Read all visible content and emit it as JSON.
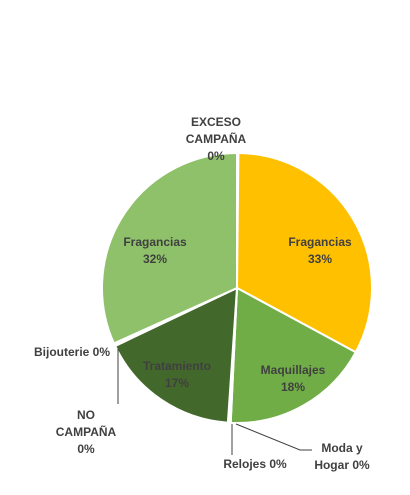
{
  "chart_data": {
    "type": "pie",
    "title": "",
    "slices": [
      {
        "label": "EXCESO CAMPAÑA",
        "value": 0,
        "pct_label": "0%",
        "color": "#FFC000",
        "label_lines": [
          "EXCESO",
          "CAMPAÑA",
          "0%"
        ]
      },
      {
        "label": "Fragancias",
        "value": 33,
        "pct_label": "33%",
        "color": "#FFC000",
        "label_lines": [
          "Fragancias",
          "33%"
        ]
      },
      {
        "label": "Maquillajes",
        "value": 18,
        "pct_label": "18%",
        "color": "#70AD47",
        "label_lines": [
          "Maquillajes",
          "18%"
        ]
      },
      {
        "label": "Moda y Hogar",
        "value": 0,
        "pct_label": "0%",
        "color": "#70AD47",
        "label_lines": [
          "Moda y",
          "Hogar 0%"
        ]
      },
      {
        "label": "Relojes",
        "value": 0,
        "pct_label": "0%",
        "color": "#548235",
        "label_lines": [
          "Relojes 0%"
        ]
      },
      {
        "label": "Tratamiento",
        "value": 17,
        "pct_label": "17%",
        "color": "#43682B",
        "label_lines": [
          "Tratamiento",
          "17%"
        ]
      },
      {
        "label": "NO CAMPAÑA",
        "value": 0,
        "pct_label": "0%",
        "color": "#43682B",
        "label_lines": [
          "NO",
          "CAMPAÑA",
          "0%"
        ]
      },
      {
        "label": "Bijouterie",
        "value": 0,
        "pct_label": "0%",
        "color": "#43682B",
        "label_lines": [
          "Bijouterie 0%"
        ]
      },
      {
        "label": "Fragancias",
        "value": 32,
        "pct_label": "32%",
        "color": "#8FC16A",
        "label_lines": [
          "Fragancias",
          "32%"
        ]
      }
    ]
  }
}
